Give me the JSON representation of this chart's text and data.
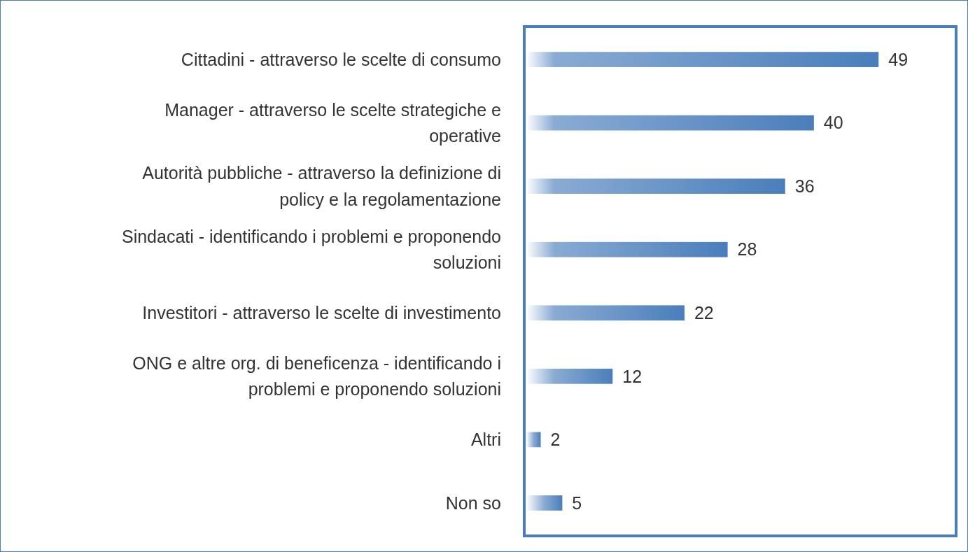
{
  "chart_data": {
    "type": "bar",
    "orientation": "horizontal",
    "data_labels": true,
    "color": "#4a7ebb",
    "categories": [
      "Cittadini - attraverso le scelte di consumo",
      "Manager - attraverso le scelte strategiche e operative",
      "Autorità pubbliche - attraverso la definizione di policy e la regolamentazione",
      "Sindacati - identificando i problemi e proponendo soluzioni",
      "Investitori - attraverso le scelte di investimento",
      "ONG e altre org. di beneficenza - identificando i problemi e proponendo soluzioni",
      "Altri",
      "Non so"
    ],
    "values": [
      49,
      40,
      36,
      28,
      22,
      12,
      2,
      5
    ]
  }
}
